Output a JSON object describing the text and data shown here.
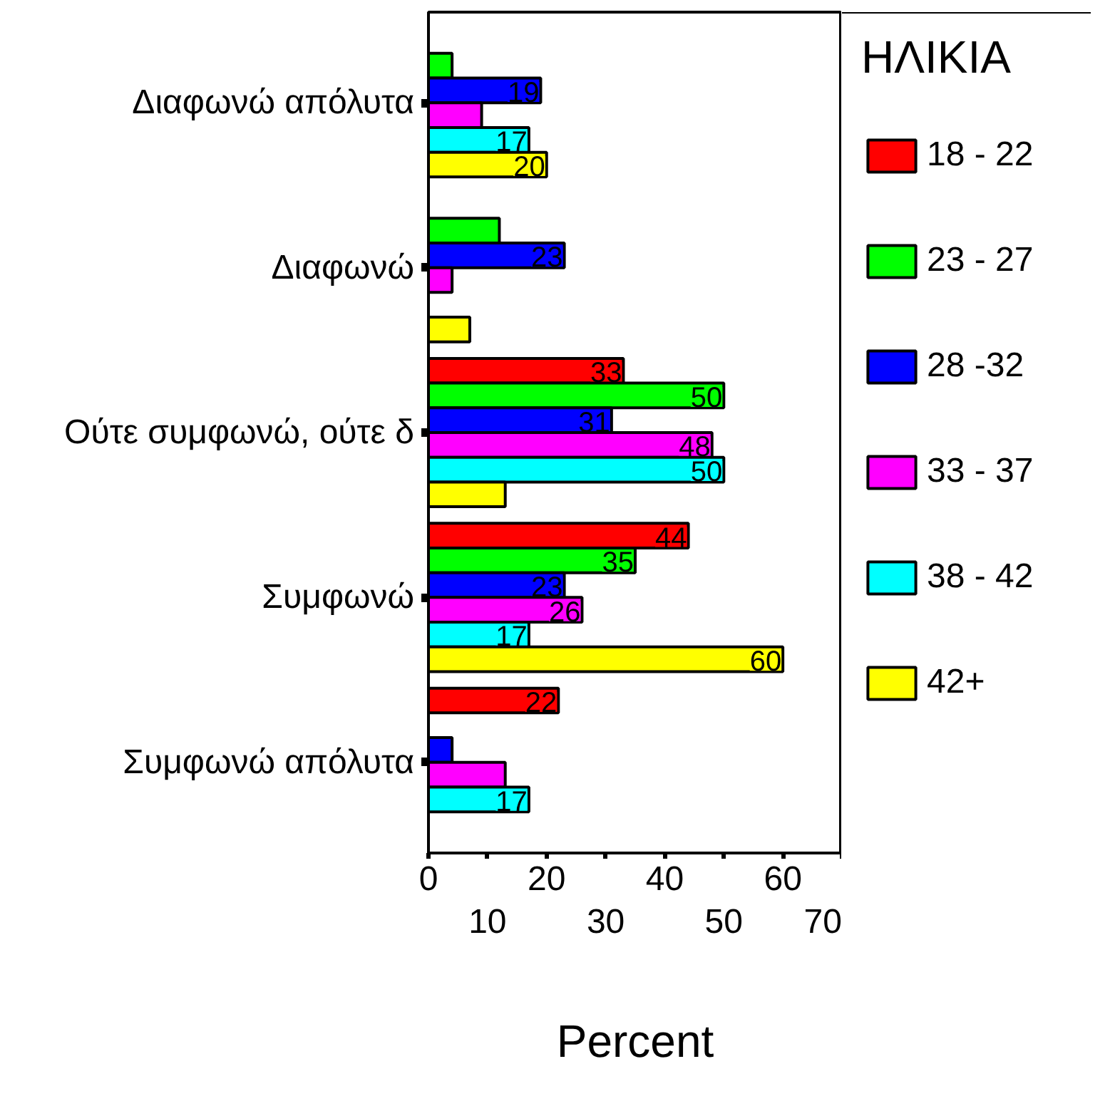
{
  "chart_data": {
    "type": "bar",
    "orientation": "horizontal",
    "xlabel": "Percent",
    "legend_title": "ΗΛΙΚΙΑ",
    "legend": "right",
    "grid": false,
    "categories": [
      "Διαφωνώ απόλυτα",
      "Διαφωνώ",
      "Ούτε συμφωνώ, ούτε δ",
      "Συμφωνώ",
      "Συμφωνώ απόλυτα"
    ],
    "xlim": [
      0,
      70
    ],
    "xticks": [
      0,
      {
        "value": 10,
        "label": null
      },
      20,
      {
        "value": 30,
        "label": null
      },
      40,
      {
        "value": 50,
        "label": null
      },
      60,
      {
        "value": 70,
        "label": null
      }
    ],
    "x2lim": [
      0,
      70
    ],
    "x2ticks": [
      {
        "value": 10,
        "label": "10"
      },
      {
        "value": 30,
        "label": "30"
      },
      {
        "value": 50,
        "label": "50"
      },
      {
        "value": 70,
        "label": "70"
      }
    ],
    "series": [
      {
        "name": "18 - 22",
        "color": "#ff0000",
        "values": [
          null,
          null,
          33,
          44,
          22
        ],
        "value_labels": [
          null,
          null,
          "33",
          "44",
          "22"
        ]
      },
      {
        "name": "23 - 27",
        "color": "#00ff00",
        "values": [
          4,
          12,
          50,
          35,
          null
        ],
        "value_labels": [
          null,
          null,
          "50",
          "35",
          null
        ]
      },
      {
        "name": "28 -32",
        "color": "#0000ff",
        "values": [
          19,
          23,
          31,
          23,
          4
        ],
        "value_labels": [
          "19",
          "23",
          "31",
          "23",
          null
        ]
      },
      {
        "name": "33 - 37",
        "color": "#ff00ff",
        "values": [
          9,
          4,
          48,
          26,
          13
        ],
        "value_labels": [
          null,
          null,
          "48",
          "26",
          null
        ]
      },
      {
        "name": "38 - 42",
        "color": "#00ffff",
        "values": [
          17,
          null,
          50,
          17,
          17
        ],
        "value_labels": [
          "17",
          null,
          "50",
          "17",
          "17"
        ]
      },
      {
        "name": "42+",
        "color": "#ffff00",
        "values": [
          20,
          7,
          13,
          60,
          null
        ],
        "value_labels": [
          "20",
          null,
          null,
          "60",
          null
        ]
      }
    ]
  }
}
